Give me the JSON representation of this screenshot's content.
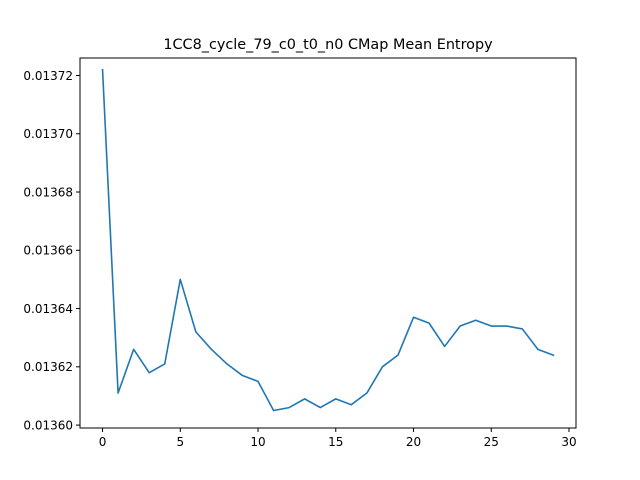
{
  "chart_data": {
    "type": "line",
    "title": "1CC8_cycle_79_c0_t0_n0 CMap Mean Entropy",
    "xlabel": "",
    "ylabel": "",
    "xlim": [
      -1.45,
      30.45
    ],
    "ylim": [
      0.013599,
      0.013726
    ],
    "xticks": [
      0,
      5,
      10,
      15,
      20,
      25,
      30
    ],
    "xtick_labels": [
      "0",
      "5",
      "10",
      "15",
      "20",
      "25",
      "30"
    ],
    "yticks": [
      0.0136,
      0.01362,
      0.01364,
      0.01366,
      0.01368,
      0.0137,
      0.01372
    ],
    "ytick_labels": [
      "0.01360",
      "0.01362",
      "0.01364",
      "0.01366",
      "0.01368",
      "0.01370",
      "0.01372"
    ],
    "grid": false,
    "series": [
      {
        "color": "#1f77b4",
        "x": [
          0,
          1,
          2,
          3,
          4,
          5,
          6,
          7,
          8,
          9,
          10,
          11,
          12,
          13,
          14,
          15,
          16,
          17,
          18,
          19,
          20,
          21,
          22,
          23,
          24,
          25,
          26,
          27,
          28,
          29
        ],
        "y": [
          0.013722,
          0.013611,
          0.013626,
          0.013618,
          0.013621,
          0.01365,
          0.013632,
          0.013626,
          0.013621,
          0.013617,
          0.013615,
          0.013605,
          0.013606,
          0.013609,
          0.013606,
          0.013609,
          0.013607,
          0.013611,
          0.01362,
          0.013624,
          0.013637,
          0.013635,
          0.013627,
          0.013634,
          0.013636,
          0.013634,
          0.013634,
          0.013633,
          0.013626,
          0.013624
        ]
      }
    ]
  }
}
